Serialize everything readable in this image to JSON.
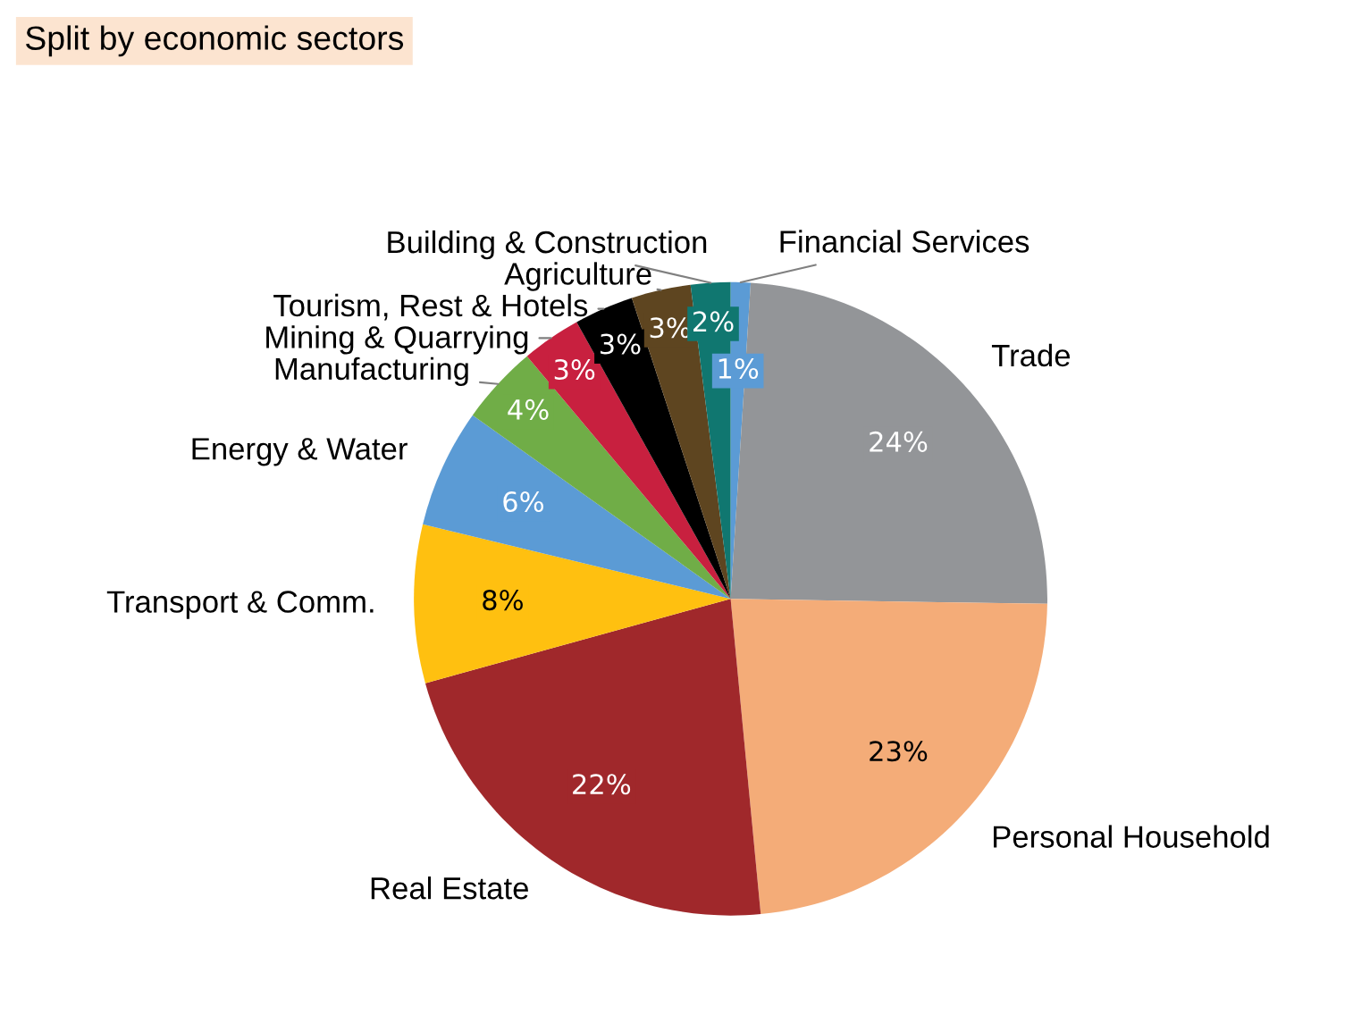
{
  "chart_data": {
    "type": "pie",
    "title": "Split by economic sectors",
    "categories": [
      "Financial Services",
      "Trade",
      "Personal Household",
      "Real Estate",
      "Transport & Comm.",
      "Energy & Water",
      "Manufacturing",
      "Mining & Quarrying",
      "Tourism, Rest & Hotels",
      "Agriculture",
      "Building & Construction"
    ],
    "values": [
      1,
      24,
      23,
      22,
      8,
      6,
      4,
      3,
      3,
      3,
      2
    ],
    "value_labels": [
      "1%",
      "24%",
      "23%",
      "22%",
      "8%",
      "6%",
      "4%",
      "3%",
      "3%",
      "3%",
      "2%"
    ],
    "colors": [
      "#5b9bd5",
      "#939598",
      "#f4ac78",
      "#a0282b",
      "#ffc010",
      "#5b9bd5",
      "#70ad47",
      "#c8203f",
      "#000000",
      "#5e4520",
      "#107770"
    ],
    "legend": false
  }
}
